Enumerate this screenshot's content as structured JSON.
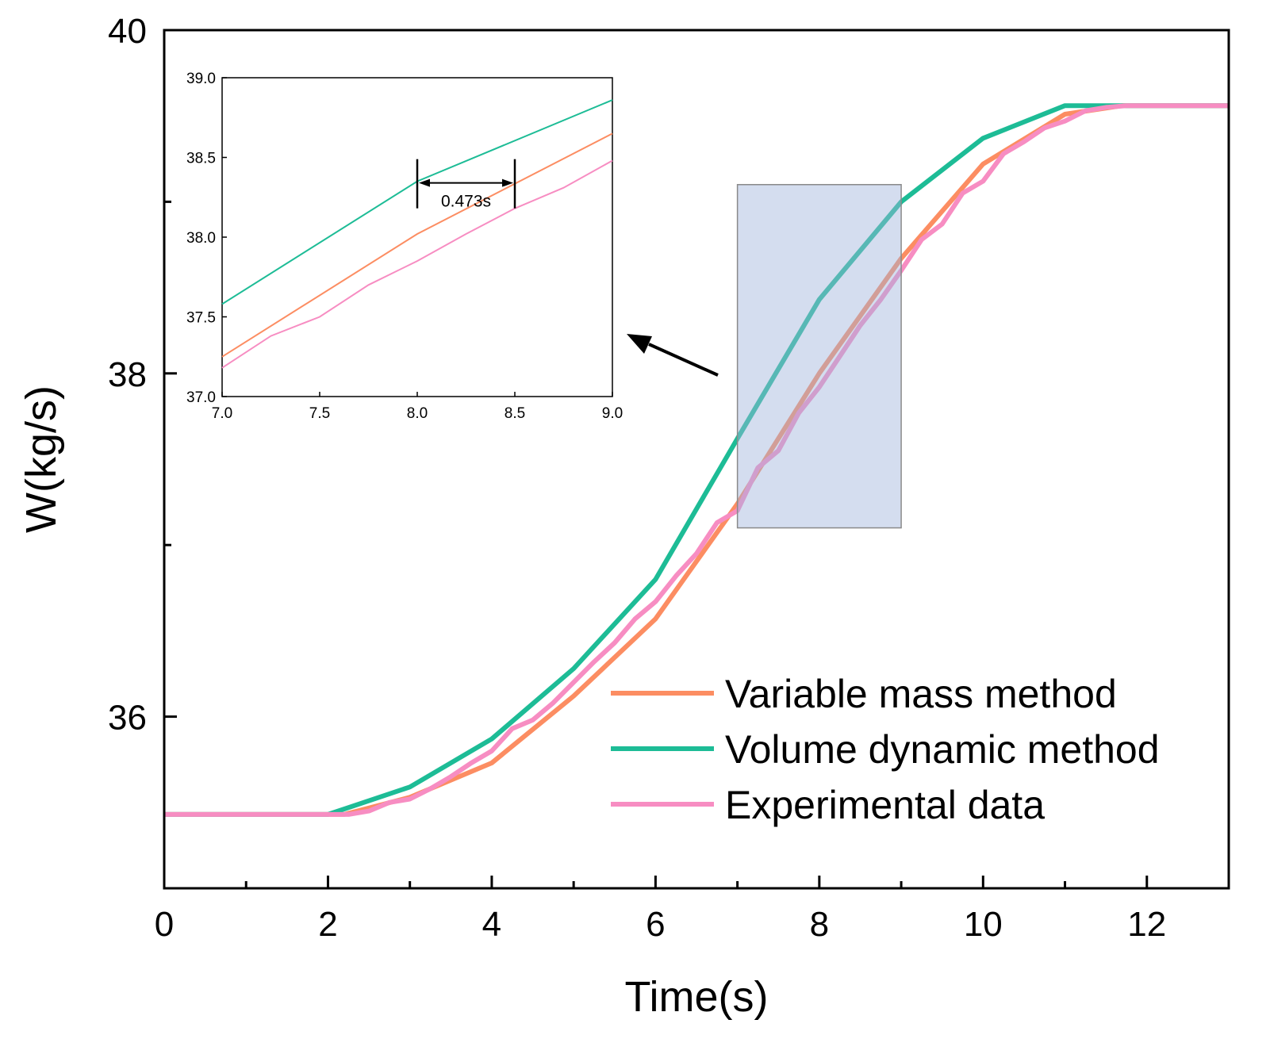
{
  "chart_data": {
    "type": "line",
    "xlabel": "Time(s)",
    "ylabel": "W(kg/s)",
    "xlim": [
      0,
      13
    ],
    "ylim": [
      35,
      40
    ],
    "xticks": [
      0,
      2,
      4,
      6,
      8,
      10,
      12
    ],
    "yticks": [
      36,
      38,
      40
    ],
    "series": [
      {
        "name": "Variable mass method",
        "color": "#fc8d62",
        "x": [
          0,
          2.2,
          3,
          4,
          5,
          6,
          7,
          8,
          9,
          10,
          11,
          11.7,
          13
        ],
        "y": [
          35.43,
          35.43,
          35.53,
          35.73,
          36.12,
          36.57,
          37.24,
          38.0,
          38.67,
          39.22,
          39.51,
          39.56,
          39.56
        ]
      },
      {
        "name": "Volume dynamic method",
        "color": "#1dbc96",
        "x": [
          0,
          2,
          3,
          4,
          5,
          6,
          7,
          8,
          9,
          10,
          11,
          11.3,
          13
        ],
        "y": [
          35.43,
          35.43,
          35.59,
          35.87,
          36.28,
          36.8,
          37.62,
          38.43,
          39.0,
          39.37,
          39.56,
          39.56,
          39.56
        ]
      },
      {
        "name": "Experimental data",
        "color": "#f78dc2",
        "x": [
          0,
          2.25,
          2.5,
          2.75,
          3,
          3.25,
          3.5,
          3.75,
          4,
          4.25,
          4.5,
          4.75,
          5,
          5.25,
          5.5,
          5.75,
          6,
          6.25,
          6.5,
          6.75,
          7,
          7.25,
          7.5,
          7.75,
          8,
          8.25,
          8.5,
          8.75,
          9,
          9.25,
          9.5,
          9.75,
          10,
          10.25,
          10.5,
          10.75,
          11,
          11.25,
          11.5,
          11.75,
          13
        ],
        "y": [
          35.43,
          35.43,
          35.45,
          35.5,
          35.52,
          35.58,
          35.65,
          35.73,
          35.8,
          35.93,
          35.98,
          36.08,
          36.2,
          36.32,
          36.43,
          36.57,
          36.67,
          36.82,
          36.95,
          37.13,
          37.2,
          37.45,
          37.55,
          37.77,
          37.92,
          38.1,
          38.28,
          38.43,
          38.6,
          38.78,
          38.87,
          39.05,
          39.12,
          39.28,
          39.35,
          39.43,
          39.47,
          39.53,
          39.55,
          39.56,
          39.56
        ]
      }
    ],
    "legend": "bottom-right",
    "highlight_region": {
      "x": [
        7,
        9
      ],
      "y": [
        37.1,
        39.1
      ]
    },
    "inset": {
      "type": "line",
      "xlim": [
        7.0,
        9.0
      ],
      "ylim": [
        37.0,
        39.0
      ],
      "xticks": [
        "7.0",
        "7.5",
        "8.0",
        "8.5",
        "9.0"
      ],
      "yticks": [
        "37.0",
        "37.5",
        "38.0",
        "38.5",
        "39.0"
      ],
      "annotation": {
        "text": "0.473s",
        "x_start": 8.0,
        "x_end": 8.5,
        "y": 38.34
      },
      "series": [
        {
          "name": "Variable mass method",
          "color": "#fc8d62",
          "x": [
            7.0,
            8.0,
            9.0
          ],
          "y": [
            37.25,
            38.02,
            38.65
          ]
        },
        {
          "name": "Volume dynamic method",
          "color": "#1dbc96",
          "x": [
            7.0,
            8.0,
            9.0
          ],
          "y": [
            37.58,
            38.35,
            38.86
          ]
        },
        {
          "name": "Experimental data",
          "color": "#f78dc2",
          "x": [
            7.0,
            7.25,
            7.5,
            7.75,
            8.0,
            8.25,
            8.5,
            8.75,
            9.0
          ],
          "y": [
            37.18,
            37.38,
            37.5,
            37.7,
            37.85,
            38.02,
            38.18,
            38.31,
            38.48
          ]
        }
      ]
    }
  }
}
